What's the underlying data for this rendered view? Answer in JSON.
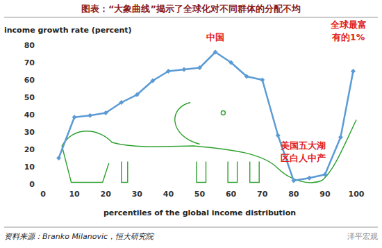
{
  "chart_data": {
    "type": "line",
    "title": "图表：“大象曲线”揭示了全球化对不同群体的分配不均",
    "y_label": "income growth rate (percent)",
    "x_label": "percentiles of the global income distribution",
    "source": "资料来源：Branko Milanovic，恒大研究院",
    "watermark": "泽平宏观",
    "x": [
      5,
      10,
      15,
      20,
      25,
      30,
      35,
      40,
      45,
      50,
      55,
      60,
      65,
      70,
      75,
      80,
      85,
      90,
      95,
      99
    ],
    "values": [
      15,
      38.5,
      39.5,
      41,
      47,
      51.5,
      59.5,
      65,
      66,
      67,
      76,
      70,
      62,
      60,
      28,
      2,
      3.5,
      5.5,
      27,
      65
    ],
    "color": "#5b9bd5",
    "marker": "diamond",
    "xlim": [
      0,
      100
    ],
    "xticks": [
      0,
      10,
      20,
      30,
      40,
      50,
      60,
      70,
      80,
      90,
      100
    ],
    "ylim": [
      0,
      80
    ],
    "yticks": [
      0,
      10,
      20,
      30,
      40,
      50,
      60,
      70,
      80
    ],
    "grid": false,
    "annotations": [
      {
        "lines": [
          "中国"
        ],
        "x": 55,
        "y": 83,
        "color": "#e02020"
      },
      {
        "lines": [
          "全球最富",
          "有的1%"
        ],
        "x": 97.5,
        "y": 90,
        "color": "#e02020"
      },
      {
        "lines": [
          "美国五大湖",
          "区白人中产"
        ],
        "x": 83,
        "y": 20.5,
        "color": "#e02020"
      }
    ]
  }
}
